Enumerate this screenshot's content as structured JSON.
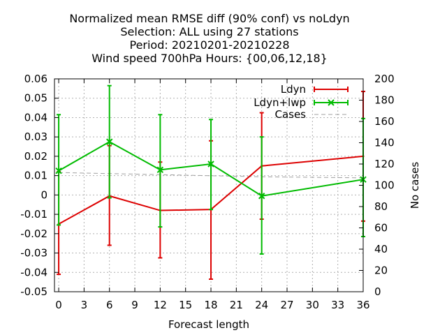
{
  "chart_data": {
    "type": "line",
    "title_lines": [
      "Normalized mean RMSE diff (90% conf) vs noLdyn",
      "Selection: ALL using    27 stations",
      "Period: 20210201-20210228",
      "Wind speed 700hPa   Hours: {00,06,12,18}"
    ],
    "xlabel": "Forecast length",
    "ylabel": "",
    "y2label": "No cases",
    "xlim": [
      -0.5,
      36
    ],
    "ylim": [
      -0.05,
      0.06
    ],
    "y2lim": [
      0,
      200
    ],
    "xticks": [
      "0",
      "3",
      "6",
      "9",
      "12",
      "15",
      "18",
      "21",
      "24",
      "27",
      "30",
      "33",
      "36"
    ],
    "yticks": [
      "-0.05",
      "-0.04",
      "-0.03",
      "-0.02",
      "-0.01",
      "0",
      "0.01",
      "0.02",
      "0.03",
      "0.04",
      "0.05",
      "0.06"
    ],
    "y2ticks": [
      "0",
      "20",
      "40",
      "60",
      "80",
      "100",
      "120",
      "140",
      "160",
      "180",
      "200"
    ],
    "grid": true,
    "legend_position": "top-right",
    "x": [
      0,
      6,
      12,
      18,
      24,
      36
    ],
    "series": [
      {
        "name": "Ldyn",
        "color": "#dd0000",
        "axis": "y",
        "marker": "errorbar",
        "values": [
          -0.015,
          -0.0005,
          -0.008,
          -0.0075,
          0.015,
          0.02
        ],
        "err_low": [
          -0.041,
          -0.026,
          -0.0325,
          -0.0435,
          -0.0125,
          -0.0135
        ],
        "err_high": [
          0.012,
          0.0255,
          0.017,
          0.028,
          0.0425,
          0.0535
        ]
      },
      {
        "name": "Ldyn+lwp",
        "color": "#00bb00",
        "axis": "y",
        "marker": "x",
        "values": [
          0.0125,
          0.0275,
          0.013,
          0.016,
          -0.0005,
          0.008
        ],
        "err_low": [
          -0.0155,
          -0.0015,
          -0.0165,
          -0.0075,
          -0.0305,
          -0.0215
        ],
        "err_high": [
          0.0415,
          0.0565,
          0.0415,
          0.039,
          0.03,
          0.0395
        ]
      },
      {
        "name": "Cases",
        "color": "#a0a0a0",
        "axis": "y2",
        "marker": "none",
        "dashed": true,
        "values": [
          112,
          111,
          110,
          109,
          108,
          107
        ]
      }
    ]
  }
}
